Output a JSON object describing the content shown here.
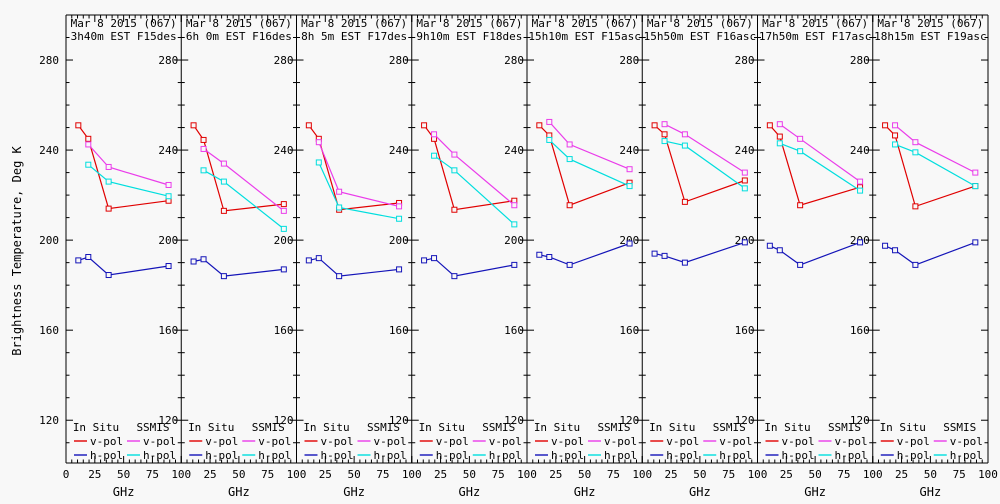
{
  "figure": {
    "ylabel": "Brightness Temperature, Deg K",
    "background": "#f8f8f8",
    "frame_color": "#000000"
  },
  "axes": {
    "ylim": [
      101,
      300
    ],
    "y_major_ticks": [
      120,
      160,
      200,
      240,
      280
    ],
    "y_minor_step": 10,
    "xlim": [
      0,
      100
    ],
    "x_major_ticks": [
      0,
      25,
      50,
      75,
      100
    ],
    "x_minor_step": 5,
    "x_axis_label": "GHz"
  },
  "legend": {
    "columns": [
      "In Situ",
      "SSMIS"
    ],
    "rows": [
      "v-pol",
      "h-pol"
    ]
  },
  "colors": {
    "insitu_vpol": "#e00000",
    "insitu_hpol": "#1414b8",
    "ssmis_vpol": "#ea3cea",
    "ssmis_hpol": "#00dede"
  },
  "chart_data": {
    "type": "line",
    "xlabel": "GHz",
    "ylabel": "Brightness Temperature, Deg K",
    "x_insitu_ghz": [
      10.7,
      19.35,
      37,
      89
    ],
    "x_ssmis_ghz": [
      19.35,
      37,
      89
    ],
    "series_names": [
      "In Situ v-pol",
      "In Situ h-pol",
      "SSMIS v-pol",
      "SSMIS h-pol"
    ],
    "panels": [
      {
        "title_line1": "Mar 8 2015 (067)",
        "title_line2": "3h40m EST F15des",
        "insitu_vpol": [
          251,
          245,
          214,
          217.5
        ],
        "insitu_hpol": [
          191,
          192.5,
          184.5,
          188.5
        ],
        "ssmis_vpol": [
          242.5,
          232.5,
          224.5
        ],
        "ssmis_hpol": [
          233.5,
          226,
          219.5
        ]
      },
      {
        "title_line1": "Mar 8 2015 (067)",
        "title_line2": "6h 0m EST F16des",
        "insitu_vpol": [
          251,
          244.5,
          213,
          216
        ],
        "insitu_hpol": [
          190.5,
          191.5,
          184,
          187
        ],
        "ssmis_vpol": [
          240.5,
          234,
          213
        ],
        "ssmis_hpol": [
          231,
          226,
          205
        ]
      },
      {
        "title_line1": "Mar 8 2015 (067)",
        "title_line2": "8h 5m EST F17des",
        "insitu_vpol": [
          251,
          245,
          213.5,
          216.5
        ],
        "insitu_hpol": [
          191,
          192,
          184,
          187
        ],
        "ssmis_vpol": [
          243.5,
          221.5,
          215
        ],
        "ssmis_hpol": [
          234.5,
          214.5,
          209.5
        ]
      },
      {
        "title_line1": "Mar 8 2015 (067)",
        "title_line2": "9h10m EST F18des",
        "insitu_vpol": [
          251,
          245,
          213.5,
          217.5
        ],
        "insitu_hpol": [
          191,
          192,
          184,
          189
        ],
        "ssmis_vpol": [
          247,
          238,
          215.5
        ],
        "ssmis_hpol": [
          237.5,
          231,
          207
        ]
      },
      {
        "title_line1": "Mar 8 2015 (067)",
        "title_line2": "15h10m EST F15asc",
        "insitu_vpol": [
          251,
          246.5,
          215.5,
          225.5
        ],
        "insitu_hpol": [
          193.5,
          192.5,
          189,
          198.5
        ],
        "ssmis_vpol": [
          252.5,
          242.5,
          231.5
        ],
        "ssmis_hpol": [
          244.5,
          236,
          224
        ]
      },
      {
        "title_line1": "Mar 8 2015 (067)",
        "title_line2": "15h50m EST F16asc",
        "insitu_vpol": [
          251,
          247,
          217,
          226.5
        ],
        "insitu_hpol": [
          194,
          193,
          190,
          199
        ],
        "ssmis_vpol": [
          251.5,
          247,
          230
        ],
        "ssmis_hpol": [
          244,
          242,
          223
        ]
      },
      {
        "title_line1": "Mar 8 2015 (067)",
        "title_line2": "17h50m EST F17asc",
        "insitu_vpol": [
          251,
          246,
          215.5,
          223.5
        ],
        "insitu_hpol": [
          197.5,
          195.5,
          189,
          199
        ],
        "ssmis_vpol": [
          251.5,
          245,
          226
        ],
        "ssmis_hpol": [
          243,
          239.5,
          222
        ]
      },
      {
        "title_line1": "Mar 8 2015 (067)",
        "title_line2": "18h15m EST F19asc",
        "insitu_vpol": [
          251,
          246.5,
          215,
          224
        ],
        "insitu_hpol": [
          197.5,
          195.5,
          189,
          199
        ],
        "ssmis_vpol": [
          251,
          243.5,
          230
        ],
        "ssmis_hpol": [
          242.5,
          239,
          224
        ]
      }
    ]
  }
}
